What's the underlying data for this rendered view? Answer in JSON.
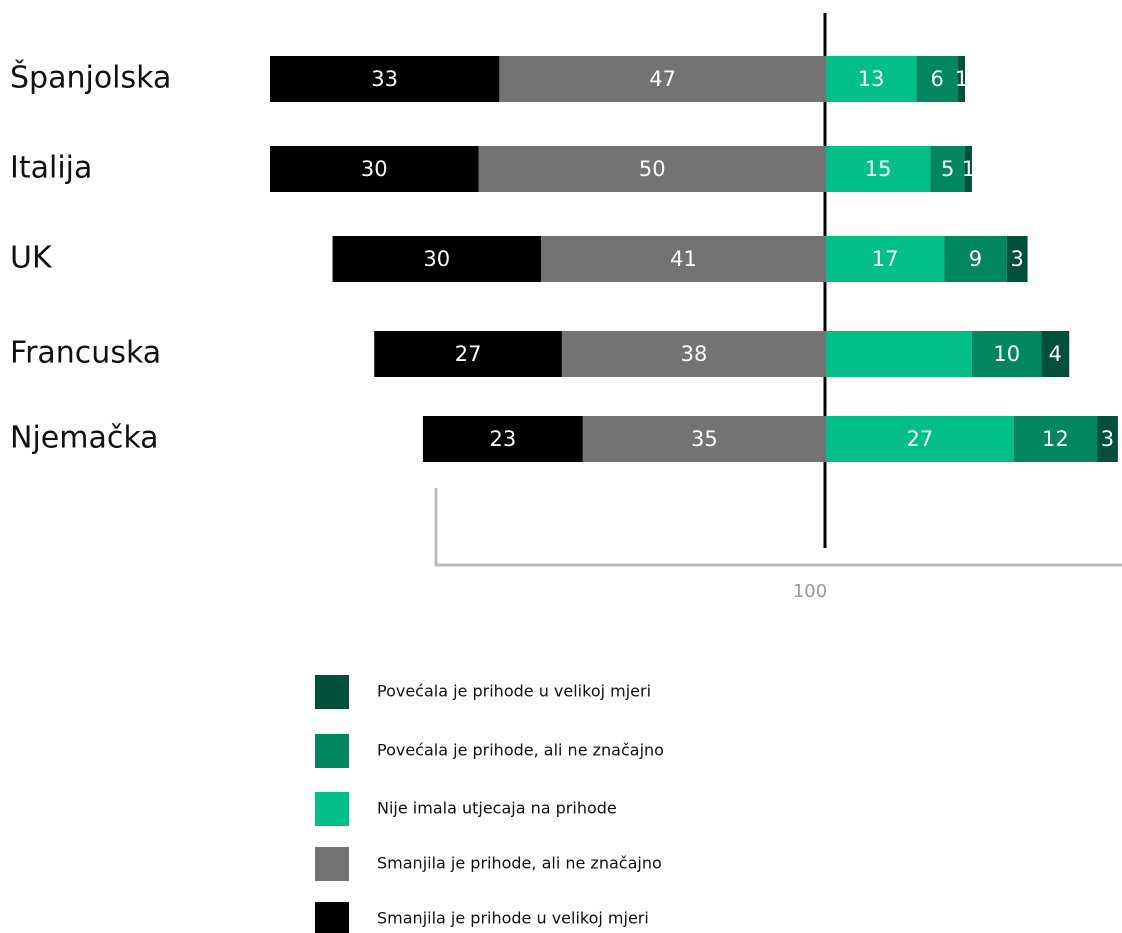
{
  "chart_data": {
    "type": "diverging-bar",
    "categories": [
      "Španjolska",
      "Italija",
      "UK",
      "Francuska",
      "Njemačka"
    ],
    "series": [
      {
        "name": "Smanjila je prihode u velikoj mjeri",
        "color": "#000000",
        "side": "negative",
        "values": [
          33,
          30,
          30,
          27,
          23
        ]
      },
      {
        "name": "Smanjila je prihode, ali ne značajno",
        "color": "#737373",
        "side": "negative",
        "values": [
          47,
          50,
          41,
          38,
          35
        ]
      },
      {
        "name": "Nije imala utjecaja na prihode",
        "color": "#00c087",
        "side": "positive",
        "values": [
          13,
          15,
          17,
          21,
          27
        ],
        "value_labels": [
          "13",
          "15",
          "17",
          null,
          "27"
        ]
      },
      {
        "name": "Povećala je prihode, ali ne značajno",
        "color": "#00875f",
        "side": "positive",
        "values": [
          6,
          5,
          9,
          10,
          12
        ]
      },
      {
        "name": "Povećala je prihode u velikoj mjeri",
        "color": "#00503a",
        "side": "positive",
        "values": [
          1,
          1,
          3,
          4,
          3
        ]
      }
    ],
    "axis_note": "100"
  }
}
